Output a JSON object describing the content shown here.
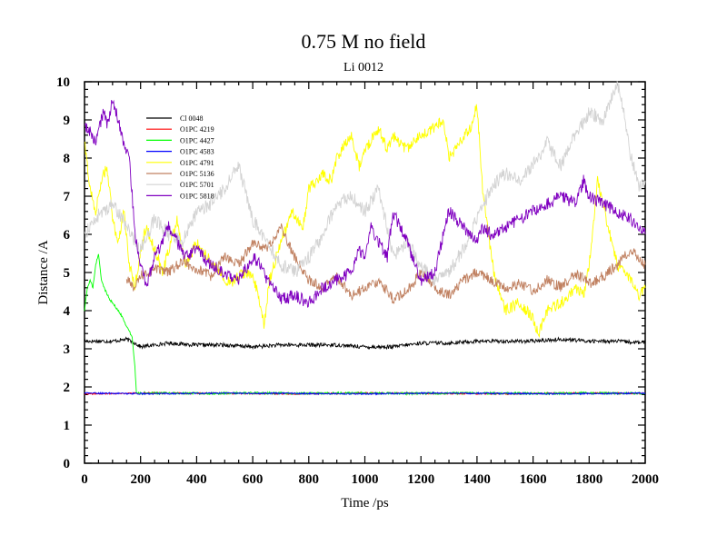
{
  "chart_data": {
    "type": "line",
    "title": "0.75 M no field",
    "subtitle": "Li 0012",
    "xlabel": "Time /ps",
    "ylabel": "Distance /A",
    "xlim": [
      0,
      2000
    ],
    "ylim": [
      0,
      10
    ],
    "xticks": [
      "0",
      "200",
      "400",
      "600",
      "800",
      "1000",
      "1200",
      "1400",
      "1600",
      "1800",
      "2000"
    ],
    "yticks": [
      "0",
      "1",
      "2",
      "3",
      "4",
      "5",
      "6",
      "7",
      "8",
      "9",
      "10"
    ],
    "legend_position": "top-left",
    "series": [
      {
        "name": "Cl 0048",
        "color": "#000000",
        "x": [
          0,
          100,
          150,
          180,
          200,
          300,
          400,
          500,
          600,
          700,
          800,
          900,
          1000,
          1100,
          1200,
          1300,
          1400,
          1500,
          1600,
          1700,
          1800,
          1900,
          2000
        ],
        "y": [
          3.2,
          3.2,
          3.25,
          3.15,
          3.05,
          3.15,
          3.1,
          3.1,
          3.05,
          3.1,
          3.1,
          3.1,
          3.05,
          3.05,
          3.15,
          3.15,
          3.2,
          3.2,
          3.2,
          3.25,
          3.2,
          3.2,
          3.15
        ]
      },
      {
        "name": "O1PC 4219",
        "color": "#ff0000",
        "x": [
          0,
          250,
          500,
          750,
          1000,
          1250,
          1500,
          1750,
          2000
        ],
        "y": [
          1.82,
          1.84,
          1.83,
          1.82,
          1.84,
          1.83,
          1.82,
          1.84,
          1.83
        ]
      },
      {
        "name": "O1PC 4427",
        "color": "#00ff00",
        "x": [
          0,
          10,
          20,
          30,
          40,
          50,
          60,
          70,
          90,
          110,
          130,
          150,
          170,
          180,
          185,
          200,
          400,
          600,
          800,
          1000,
          1200,
          1400,
          1600,
          1800,
          2000
        ],
        "y": [
          4.0,
          4.6,
          4.8,
          4.6,
          5.2,
          5.5,
          4.8,
          4.6,
          4.3,
          4.1,
          3.9,
          3.6,
          3.3,
          2.5,
          1.85,
          1.84,
          1.83,
          1.84,
          1.83,
          1.84,
          1.83,
          1.84,
          1.83,
          1.84,
          1.83
        ]
      },
      {
        "name": "O1PC 4583",
        "color": "#0000ff",
        "x": [
          0,
          250,
          500,
          750,
          1000,
          1250,
          1500,
          1750,
          2000
        ],
        "y": [
          1.84,
          1.82,
          1.84,
          1.83,
          1.82,
          1.84,
          1.83,
          1.82,
          1.84
        ]
      },
      {
        "name": "O1PC 4791",
        "color": "#ffff00",
        "x": [
          0,
          20,
          40,
          60,
          80,
          100,
          120,
          140,
          160,
          180,
          200,
          220,
          240,
          260,
          280,
          300,
          330,
          360,
          400,
          440,
          480,
          520,
          560,
          600,
          620,
          640,
          660,
          700,
          720,
          740,
          780,
          800,
          850,
          880,
          900,
          950,
          980,
          1000,
          1050,
          1080,
          1100,
          1150,
          1200,
          1250,
          1280,
          1300,
          1350,
          1380,
          1400,
          1420,
          1440,
          1460,
          1500,
          1550,
          1600,
          1620,
          1650,
          1700,
          1750,
          1780,
          1800,
          1830,
          1850,
          1880,
          1900,
          1950,
          1980,
          2000
        ],
        "y": [
          8.4,
          7.2,
          6.6,
          7.4,
          7.8,
          6.4,
          5.8,
          6.6,
          5.2,
          4.6,
          5.6,
          6.2,
          5.8,
          5.4,
          5.0,
          5.6,
          6.4,
          5.2,
          5.8,
          5.4,
          5.0,
          4.7,
          5.0,
          4.9,
          4.4,
          3.6,
          4.8,
          5.8,
          6.2,
          6.6,
          6.2,
          7.2,
          7.6,
          7.4,
          8.0,
          8.6,
          7.8,
          8.2,
          8.8,
          8.2,
          8.6,
          8.2,
          8.6,
          8.8,
          9.0,
          8.0,
          8.5,
          8.8,
          9.4,
          7.2,
          6.0,
          5.0,
          4.0,
          4.2,
          3.8,
          3.4,
          4.0,
          4.2,
          4.6,
          4.4,
          5.2,
          7.4,
          6.8,
          5.8,
          5.2,
          4.8,
          4.4,
          4.6
        ]
      },
      {
        "name": "O1PC 5136",
        "color": "#c08060",
        "x": [
          150,
          180,
          200,
          250,
          300,
          350,
          400,
          450,
          500,
          550,
          600,
          650,
          700,
          750,
          800,
          850,
          900,
          950,
          1000,
          1050,
          1100,
          1150,
          1200,
          1250,
          1300,
          1350,
          1400,
          1450,
          1500,
          1550,
          1600,
          1650,
          1700,
          1750,
          1800,
          1850,
          1900,
          1950,
          2000
        ],
        "y": [
          4.8,
          4.6,
          4.9,
          5.1,
          5.0,
          5.3,
          5.1,
          4.9,
          5.4,
          5.2,
          5.8,
          5.6,
          6.2,
          5.4,
          4.8,
          4.6,
          4.9,
          4.4,
          4.6,
          4.8,
          4.3,
          4.5,
          5.0,
          4.6,
          4.4,
          4.8,
          5.0,
          4.8,
          4.6,
          4.7,
          4.5,
          4.8,
          4.6,
          5.0,
          4.7,
          4.9,
          5.2,
          5.6,
          5.2
        ]
      },
      {
        "name": "O1PC 5701",
        "color": "#d3d3d3",
        "x": [
          0,
          50,
          100,
          150,
          200,
          250,
          300,
          350,
          400,
          450,
          500,
          550,
          600,
          650,
          700,
          750,
          800,
          850,
          900,
          950,
          1000,
          1050,
          1100,
          1150,
          1200,
          1250,
          1300,
          1350,
          1400,
          1450,
          1500,
          1550,
          1600,
          1650,
          1700,
          1750,
          1800,
          1850,
          1880,
          1900,
          1920,
          1950,
          1980,
          2000
        ],
        "y": [
          6.0,
          6.5,
          6.8,
          6.2,
          5.6,
          6.4,
          6.0,
          5.8,
          6.6,
          6.8,
          7.2,
          7.8,
          6.4,
          5.8,
          5.2,
          5.0,
          5.4,
          6.0,
          6.8,
          7.0,
          6.6,
          7.2,
          5.4,
          5.8,
          5.2,
          4.8,
          5.0,
          5.6,
          6.4,
          7.2,
          7.6,
          7.4,
          7.8,
          8.4,
          7.8,
          8.6,
          9.2,
          9.0,
          9.6,
          10.0,
          9.4,
          8.0,
          7.2,
          7.4
        ]
      },
      {
        "name": "O1PC 5818",
        "color": "#8000c0",
        "x": [
          0,
          20,
          40,
          60,
          70,
          80,
          100,
          120,
          140,
          160,
          170,
          180,
          200,
          220,
          250,
          280,
          300,
          330,
          360,
          400,
          450,
          500,
          550,
          600,
          630,
          650,
          680,
          700,
          750,
          800,
          850,
          900,
          950,
          980,
          1000,
          1020,
          1050,
          1080,
          1100,
          1150,
          1200,
          1250,
          1280,
          1300,
          1350,
          1400,
          1420,
          1450,
          1500,
          1550,
          1600,
          1650,
          1700,
          1750,
          1780,
          1800,
          1850,
          1900,
          1950,
          2000
        ],
        "y": [
          8.8,
          8.7,
          8.4,
          9.0,
          9.3,
          8.8,
          9.5,
          9.0,
          8.4,
          8.0,
          7.0,
          6.0,
          5.2,
          4.6,
          5.4,
          5.8,
          6.2,
          5.8,
          5.4,
          5.6,
          5.2,
          5.0,
          4.8,
          5.4,
          5.2,
          4.8,
          4.6,
          4.3,
          4.4,
          4.2,
          4.6,
          4.8,
          5.0,
          5.6,
          5.4,
          6.2,
          5.8,
          5.4,
          6.6,
          5.8,
          4.8,
          5.0,
          6.0,
          6.6,
          6.2,
          5.8,
          6.2,
          6.0,
          6.2,
          6.4,
          6.6,
          6.8,
          7.0,
          6.8,
          7.4,
          7.0,
          6.8,
          6.6,
          6.4,
          6.0
        ]
      }
    ]
  }
}
